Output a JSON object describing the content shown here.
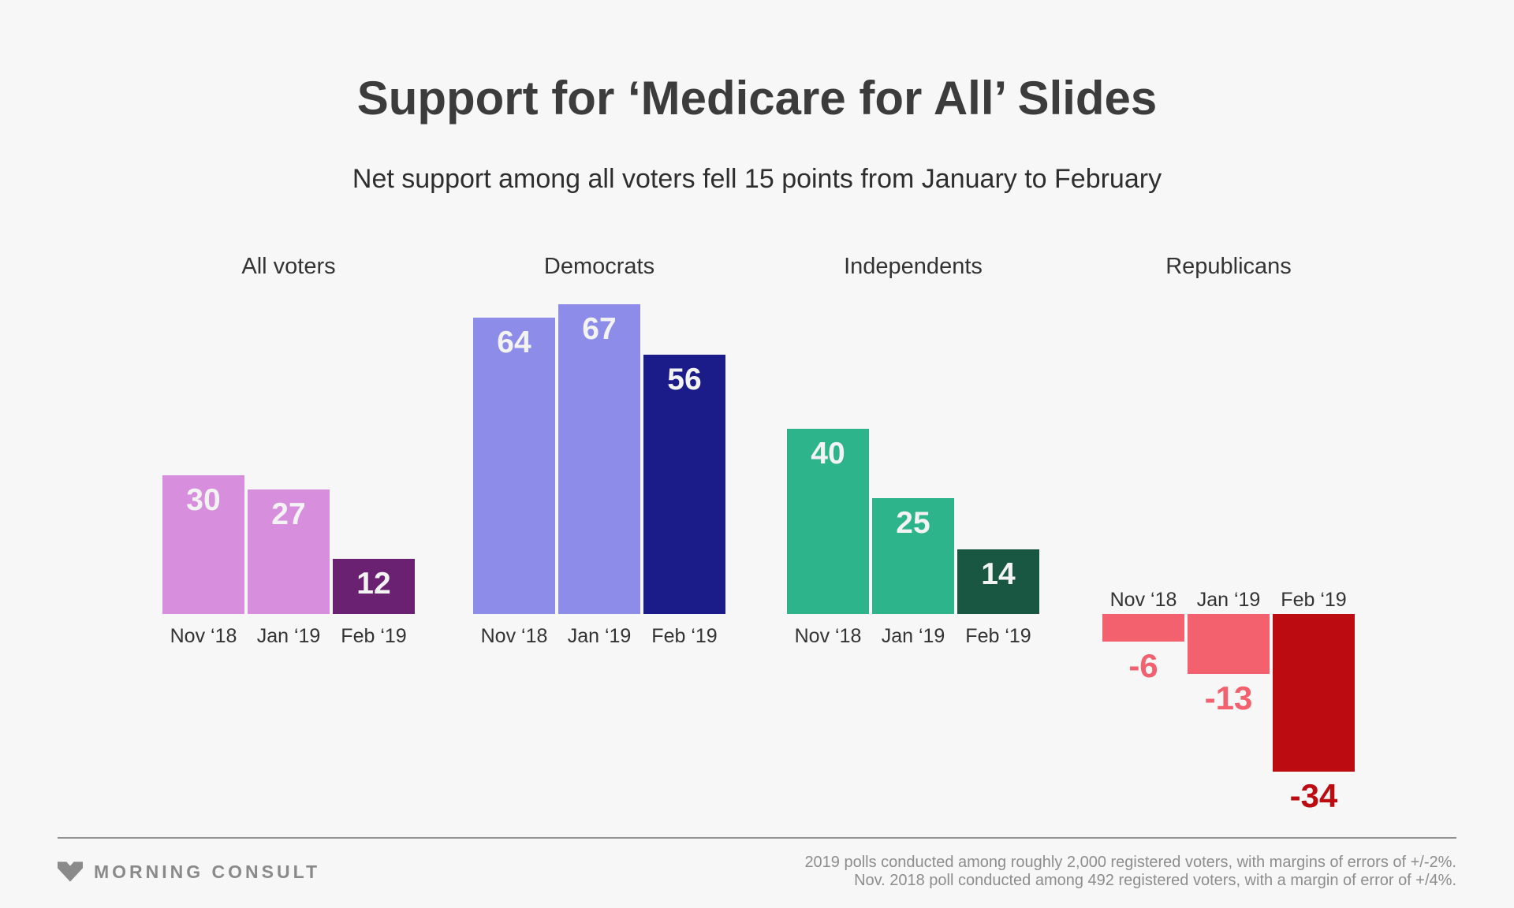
{
  "header": {
    "title": "Support for ‘Medicare for All’ Slides",
    "subtitle": "Net support among all voters fell 15 points from January to February"
  },
  "chart_data": {
    "type": "bar",
    "title": "Support for ‘Medicare for All’ Slides",
    "subtitle": "Net support among all voters fell 15 points from January to February",
    "value_unit": "net support points",
    "baseline": 0,
    "grid": false,
    "legend": false,
    "categories": [
      "Nov ‘18",
      "Jan ‘19",
      "Feb ‘19"
    ],
    "groups": [
      {
        "name": "All voters",
        "values": [
          30,
          27,
          12
        ],
        "colors": [
          "#d78edd",
          "#d78edd",
          "#6b2172"
        ]
      },
      {
        "name": "Democrats",
        "values": [
          64,
          67,
          56
        ],
        "colors": [
          "#8d8de9",
          "#8d8de9",
          "#1b1b8a"
        ]
      },
      {
        "name": "Independents",
        "values": [
          40,
          25,
          14
        ],
        "colors": [
          "#2db48b",
          "#2db48b",
          "#1a5742"
        ]
      },
      {
        "name": "Republicans",
        "values": [
          -6,
          -13,
          -34
        ],
        "colors": [
          "#f2616d",
          "#f2616d",
          "#bc0c12"
        ]
      }
    ]
  },
  "footer": {
    "brand": "MORNING CONSULT",
    "source_line1": "2019 polls conducted among roughly 2,000 registered voters, with margins of errors of +/-2%.",
    "source_line2": "Nov. 2018 poll conducted among 492 registered voters, with a margin of error of +/4%."
  },
  "colors": {
    "background": "#f7f7f7",
    "title_text": "#3c3c3c",
    "tick_text": "#333333",
    "footer_text": "#8d8d8d",
    "brand_gray": "#8a8a8a"
  }
}
